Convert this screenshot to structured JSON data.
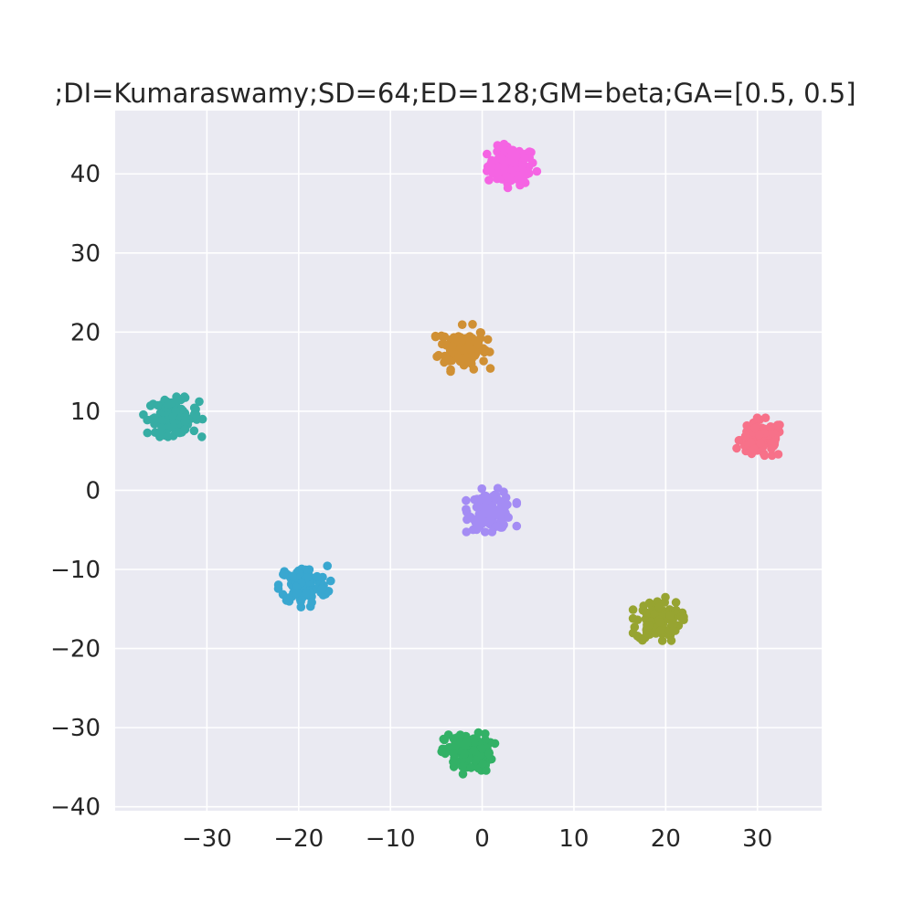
{
  "chart_data": {
    "type": "scatter",
    "title": ";DI=Kumaraswamy;SD=64;ED=128;GM=beta;GA=[0.5, 0.5]",
    "xlabel": "",
    "ylabel": "",
    "xlim": [
      -40,
      37
    ],
    "ylim": [
      -40.5,
      48
    ],
    "grid": true,
    "background": "#eaeaf2",
    "grid_color": "#ffffff",
    "x_ticks": [
      -30,
      -20,
      -10,
      0,
      10,
      20,
      30
    ],
    "x_tick_labels": [
      "−30",
      "−20",
      "−10",
      "0",
      "10",
      "20",
      "30"
    ],
    "y_ticks": [
      40,
      30,
      20,
      10,
      0,
      -10,
      -20,
      -30,
      -40
    ],
    "y_tick_labels": [
      "40",
      "30",
      "20",
      "10",
      "0",
      "−10",
      "−20",
      "−30",
      "−40"
    ],
    "clusters": [
      {
        "color": "#f564e3",
        "center": [
          3.2,
          41.0
        ],
        "spread": [
          1.3,
          1.2
        ],
        "count": 110
      },
      {
        "color": "#d09034",
        "center": [
          -2.1,
          18.0
        ],
        "spread": [
          1.3,
          1.3
        ],
        "count": 110
      },
      {
        "color": "#36ada4",
        "center": [
          -33.7,
          9.3
        ],
        "spread": [
          1.4,
          1.1
        ],
        "count": 110
      },
      {
        "color": "#f77189",
        "center": [
          30.5,
          6.4
        ],
        "spread": [
          1.2,
          1.2
        ],
        "count": 110
      },
      {
        "color": "#a48cf4",
        "center": [
          1.0,
          -2.5
        ],
        "spread": [
          1.2,
          1.2
        ],
        "count": 110
      },
      {
        "color": "#39a7d0",
        "center": [
          -19.5,
          -12.0
        ],
        "spread": [
          1.3,
          1.2
        ],
        "count": 110
      },
      {
        "color": "#97a431",
        "center": [
          19.2,
          -16.5
        ],
        "spread": [
          1.2,
          1.3
        ],
        "count": 110
      },
      {
        "color": "#32b166",
        "center": [
          -1.5,
          -33.2
        ],
        "spread": [
          1.3,
          1.2
        ],
        "count": 110
      }
    ]
  }
}
